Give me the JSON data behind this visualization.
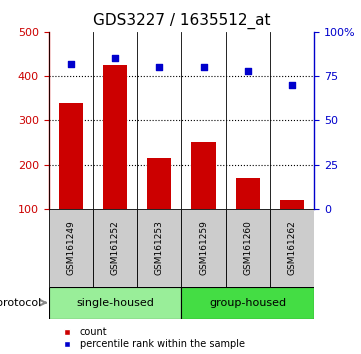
{
  "title": "GDS3227 / 1635512_at",
  "samples": [
    "GSM161249",
    "GSM161252",
    "GSM161253",
    "GSM161259",
    "GSM161260",
    "GSM161262"
  ],
  "counts": [
    340,
    425,
    215,
    250,
    170,
    120
  ],
  "percentiles": [
    82,
    85,
    80,
    80,
    78,
    70
  ],
  "group_spans": [
    {
      "label": "single-housed",
      "start": 0,
      "end": 2,
      "color": "#99ee99"
    },
    {
      "label": "group-housed",
      "start": 3,
      "end": 5,
      "color": "#44dd44"
    }
  ],
  "bar_color": "#cc0000",
  "dot_color": "#0000cc",
  "ylim_left": [
    100,
    500
  ],
  "ylim_right": [
    0,
    100
  ],
  "yticks_left": [
    100,
    200,
    300,
    400,
    500
  ],
  "yticks_right": [
    0,
    25,
    50,
    75,
    100
  ],
  "yticklabels_right": [
    "0",
    "25",
    "50",
    "75",
    "100%"
  ],
  "bg_color_plot": "#ffffff",
  "bg_color_label": "#cccccc",
  "title_fontsize": 11,
  "tick_fontsize": 8,
  "legend_items": [
    "count",
    "percentile rank within the sample"
  ],
  "protocol_label": "protocol"
}
